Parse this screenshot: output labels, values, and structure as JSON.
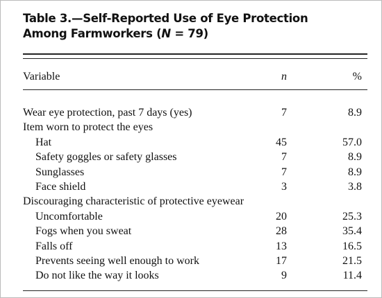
{
  "header": {
    "title_line1": "Table 3.—Self-Reported Use of Eye Protection",
    "title_line2_pre": "Among Farmworkers (",
    "title_line2_italic": "N",
    "title_line2_post": " = 79)"
  },
  "table": {
    "columns": [
      "Variable",
      "n",
      "%"
    ],
    "rows": [
      {
        "label": "Wear eye protection, past 7 days (yes)",
        "n": "7",
        "pct": "8.9"
      }
    ],
    "groups": [
      {
        "label": "Item worn to protect the eyes",
        "items": [
          {
            "label": "Hat",
            "n": "45",
            "pct": "57.0"
          },
          {
            "label": "Safety goggles or safety glasses",
            "n": "7",
            "pct": "8.9"
          },
          {
            "label": "Sunglasses",
            "n": "7",
            "pct": "8.9"
          },
          {
            "label": "Face shield",
            "n": "3",
            "pct": "3.8"
          }
        ]
      },
      {
        "label": "Discouraging characteristic of protective eyewear",
        "items": [
          {
            "label": "Uncomfortable",
            "n": "20",
            "pct": "25.3"
          },
          {
            "label": "Fogs when you sweat",
            "n": "28",
            "pct": "35.4"
          },
          {
            "label": "Falls off",
            "n": "13",
            "pct": "16.5"
          },
          {
            "label": "Prevents seeing well enough to work",
            "n": "17",
            "pct": "21.5"
          },
          {
            "label": "Do not like the way it looks",
            "n": "9",
            "pct": "11.4"
          }
        ]
      }
    ]
  }
}
